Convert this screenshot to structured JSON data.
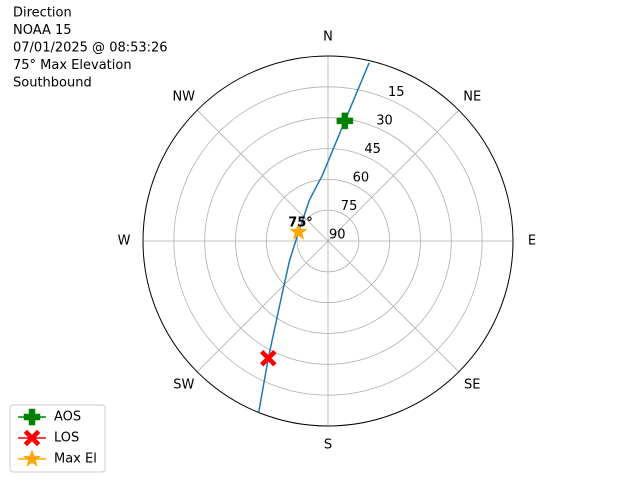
{
  "chart_data": {
    "type": "polar",
    "title_lines": [
      "Direction",
      "NOAA 15",
      "07/01/2025 @ 08:53:26",
      "75° Max Elevation",
      "Southbound"
    ],
    "rlim": [
      90,
      0
    ],
    "rticks": [
      15,
      30,
      45,
      60,
      75,
      90
    ],
    "thetaticks": [
      {
        "value": 0,
        "label": "N"
      },
      {
        "value": 45,
        "label": "NE"
      },
      {
        "value": 90,
        "label": "E"
      },
      {
        "value": 135,
        "label": "SE"
      },
      {
        "value": 180,
        "label": "S"
      },
      {
        "value": 225,
        "label": "SW"
      },
      {
        "value": 270,
        "label": "W"
      },
      {
        "value": 315,
        "label": "NW"
      }
    ],
    "grid": true,
    "legend": "lower left",
    "track": {
      "color": "#1f77b4",
      "azimuth": [
        13,
        8,
        355,
        336,
        287,
        243,
        223,
        207,
        202
      ],
      "elevation": [
        1,
        31,
        58,
        68,
        75,
        69,
        58,
        26,
        0
      ]
    },
    "series": [
      {
        "name": "AOS",
        "color": "green",
        "marker": "plus",
        "azimuth": [
          8
        ],
        "elevation": [
          31
        ]
      },
      {
        "name": "LOS",
        "color": "red",
        "marker": "x",
        "azimuth": [
          207
        ],
        "elevation": [
          26
        ]
      },
      {
        "name": "Max El",
        "color": "orange",
        "marker": "star",
        "azimuth": [
          287
        ],
        "elevation": [
          75
        ]
      }
    ],
    "annotation": {
      "text": "75°"
    }
  }
}
